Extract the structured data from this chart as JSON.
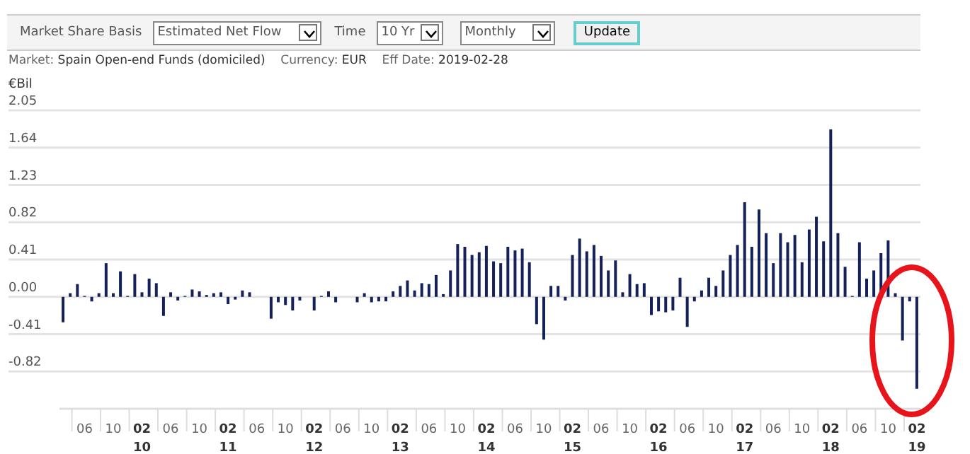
{
  "chart_data": {
    "type": "bar",
    "ylabel": "€Bil",
    "annotations": [
      "Market Share Basis",
      "Estimated Net Flow",
      "Time",
      "10 Yr",
      "Monthly",
      "Update",
      "Market:",
      "Spain Open-end Funds (domiciled)",
      "Currency:",
      "EUR",
      "Eff Date:",
      "2019-02-28"
    ],
    "categories": [
      null,
      null,
      null,
      "06",
      null,
      null,
      null,
      "10",
      null,
      null,
      null,
      "02\n10",
      null,
      null,
      null,
      "06",
      null,
      null,
      null,
      "10",
      null,
      null,
      null,
      "02\n11",
      null,
      null,
      null,
      "06",
      null,
      null,
      null,
      "10",
      null,
      null,
      null,
      "02\n12",
      null,
      null,
      null,
      "06",
      null,
      null,
      null,
      "10",
      null,
      null,
      null,
      "02\n13",
      null,
      null,
      null,
      "06",
      null,
      null,
      null,
      "10",
      null,
      null,
      null,
      "02\n14",
      null,
      null,
      null,
      "06",
      null,
      null,
      null,
      "10",
      null,
      null,
      null,
      "02\n15",
      null,
      null,
      null,
      "06",
      null,
      null,
      null,
      "10",
      null,
      null,
      null,
      "02\n16",
      null,
      null,
      null,
      "06",
      null,
      null,
      null,
      "10",
      null,
      null,
      null,
      "02\n17",
      null,
      null,
      null,
      "06",
      null,
      null,
      null,
      "10",
      null,
      null,
      null,
      "02\n18",
      null,
      null,
      null,
      "06",
      null,
      null,
      null,
      "10",
      null,
      null,
      null,
      "02\n19"
    ],
    "values": [
      -0.28,
      0.04,
      0.14,
      0.01,
      -0.05,
      0.04,
      0.37,
      0.04,
      0.28,
      0.01,
      0.25,
      0.05,
      0.2,
      0.15,
      -0.21,
      0.05,
      -0.04,
      0.01,
      0.08,
      0.06,
      0.02,
      0.04,
      0.05,
      -0.08,
      -0.03,
      0.07,
      0.05,
      0.0,
      0.0,
      -0.24,
      -0.06,
      -0.09,
      -0.15,
      -0.04,
      0.0,
      -0.15,
      0.01,
      0.06,
      -0.06,
      0.0,
      0.0,
      -0.06,
      0.04,
      -0.06,
      -0.05,
      -0.05,
      0.06,
      0.12,
      0.18,
      0.07,
      0.15,
      0.14,
      0.24,
      0.03,
      0.29,
      0.58,
      0.55,
      0.46,
      0.49,
      0.56,
      0.39,
      0.37,
      0.55,
      0.51,
      0.53,
      0.38,
      -0.3,
      -0.47,
      0.12,
      0.12,
      -0.04,
      0.46,
      0.64,
      0.5,
      0.57,
      0.45,
      0.29,
      0.4,
      0.05,
      0.25,
      0.14,
      0.15,
      -0.2,
      -0.16,
      -0.17,
      -0.15,
      0.21,
      -0.33,
      -0.05,
      0.07,
      0.21,
      0.12,
      0.29,
      0.46,
      0.57,
      1.04,
      0.55,
      0.96,
      0.7,
      0.37,
      0.7,
      0.6,
      0.68,
      0.38,
      0.74,
      0.88,
      0.61,
      1.84,
      0.7,
      0.33,
      0.01,
      0.6,
      0.2,
      0.29,
      0.48,
      0.62,
      0.04,
      -0.48,
      -0.05,
      -1.01
    ],
    "color": "#14215a",
    "ylim": [
      -1.23,
      2.05
    ],
    "yticks": [
      -0.82,
      -0.41,
      {
        "value": 0,
        "label": "0.00"
      },
      0.41,
      0.82,
      1.23,
      1.64,
      2.05
    ],
    "grid": "y"
  }
}
